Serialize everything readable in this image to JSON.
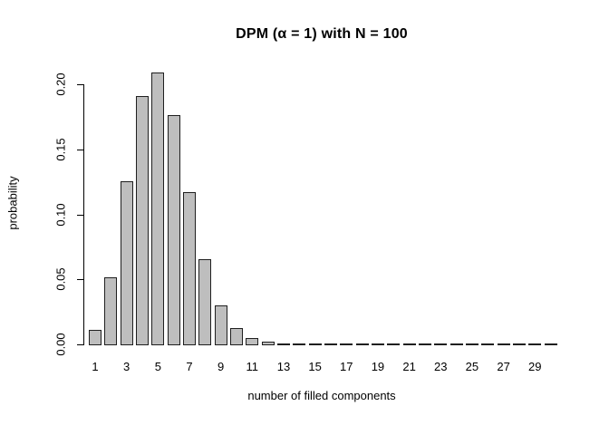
{
  "chart_data": {
    "type": "bar",
    "title": "DPM (α = 1) with N = 100",
    "xlabel": "number of filled components",
    "ylabel": "probability",
    "categories": [
      1,
      2,
      3,
      4,
      5,
      6,
      7,
      8,
      9,
      10,
      11,
      12,
      13,
      14,
      15,
      16,
      17,
      18,
      19,
      20,
      21,
      22,
      23,
      24,
      25,
      26,
      27,
      28,
      29,
      30
    ],
    "values": [
      0.012,
      0.052,
      0.126,
      0.192,
      0.21,
      0.177,
      0.118,
      0.066,
      0.031,
      0.013,
      0.0057,
      0.0025,
      0.0012,
      0.0005,
      0.0002,
      0.0001,
      0.0001,
      0,
      0,
      0,
      0,
      0,
      0,
      0,
      0,
      0,
      0,
      0,
      0,
      0
    ],
    "x_tick_labels": [
      "1",
      "3",
      "5",
      "7",
      "9",
      "11",
      "13",
      "15",
      "17",
      "19",
      "21",
      "23",
      "25",
      "27",
      "29"
    ],
    "y_tick_labels": [
      "0.00",
      "0.05",
      "0.10",
      "0.15",
      "0.20"
    ],
    "y_tick_values": [
      0.0,
      0.05,
      0.1,
      0.15,
      0.2
    ],
    "ylim": [
      0,
      0.21
    ],
    "grid": "off",
    "legend": "none",
    "bar_fill_color": "#bebebe",
    "bar_border_color": "#1f1f1f",
    "axis_color": "#000000",
    "background_color": "#ffffff"
  }
}
